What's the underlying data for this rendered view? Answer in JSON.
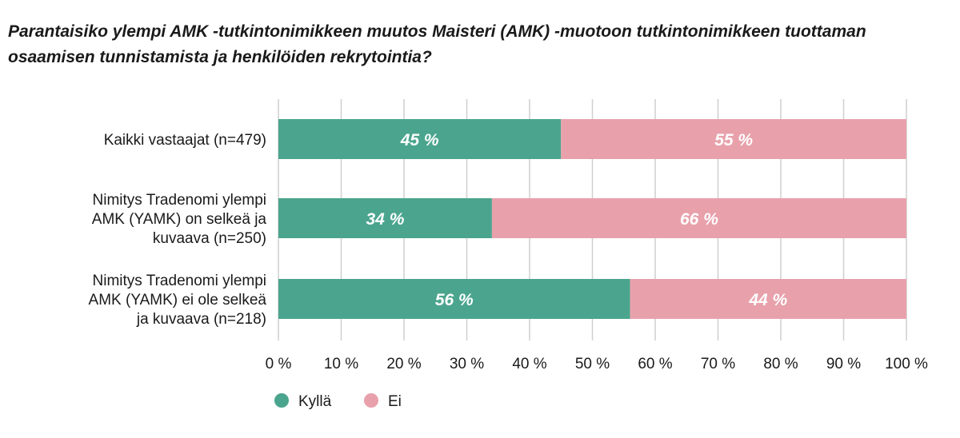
{
  "chart_data": {
    "type": "bar",
    "orientation": "horizontal",
    "stacked": true,
    "title": "Parantaisiko ylempi AMK -tutkintonimikkeen muutos Maisteri (AMK) -muotoon tutkintonimikkeen tuottaman osaamisen tunnistamista ja henkilöiden rekrytointia?",
    "categories": [
      [
        "Kaikki vastaajat (n=479)"
      ],
      [
        "Nimitys Tradenomi ylempi",
        "AMK (YAMK) on selkeä ja",
        "kuvaava (n=250)"
      ],
      [
        "Nimitys Tradenomi ylempi",
        "AMK (YAMK) ei ole selkeä",
        "ja kuvaava (n=218)"
      ]
    ],
    "series": [
      {
        "name": "Kyllä",
        "color": "#4ba58e",
        "values": [
          45,
          34,
          56
        ],
        "labels": [
          "45 %",
          "34 %",
          "56 %"
        ]
      },
      {
        "name": "Ei",
        "color": "#e8a1ab",
        "values": [
          55,
          66,
          44
        ],
        "labels": [
          "55 %",
          "66 %",
          "44 %"
        ]
      }
    ],
    "xlim": [
      0,
      100
    ],
    "xticks": [
      0,
      10,
      20,
      30,
      40,
      50,
      60,
      70,
      80,
      90,
      100
    ],
    "xtick_labels": [
      "0 %",
      "10 %",
      "20 %",
      "30 %",
      "40 %",
      "50 %",
      "60 %",
      "70 %",
      "80 %",
      "90 %",
      "100 %"
    ],
    "grid": true,
    "legend_position": "bottom-left"
  }
}
